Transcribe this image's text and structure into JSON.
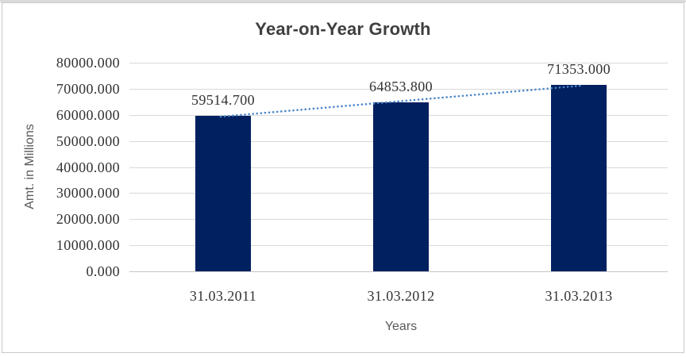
{
  "chart_data": {
    "type": "bar",
    "title": "Year-on-Year Growth",
    "categories": [
      "31.03.2011",
      "31.03.2012",
      "31.03.2013"
    ],
    "values": [
      59514.7,
      64853.8,
      71353.0
    ],
    "value_labels": [
      "59514.700",
      "64853.800",
      "71353.000"
    ],
    "xlabel": "Years",
    "ylabel": "Amt. in Millions",
    "ylim": [
      0,
      80000
    ],
    "ytick_step": 10000,
    "ytick_labels_top_to_bottom": [
      "80000.000",
      "70000.000",
      "60000.000",
      "50000.000",
      "40000.000",
      "30000.000",
      "20000.000",
      "10000.000",
      "0.000"
    ],
    "grid": true,
    "legend": "none",
    "trendline": {
      "type": "linear",
      "style": "dotted"
    },
    "colors": {
      "bar": "#002060",
      "trendline": "#4a86c8",
      "gridline": "#d9d9d9",
      "axis_line": "#c6c6c6",
      "title_text": "#3f3f3f",
      "tick_text": "#333333",
      "axis_title_text": "#595959",
      "frame_border": "#c9c9c9"
    }
  }
}
